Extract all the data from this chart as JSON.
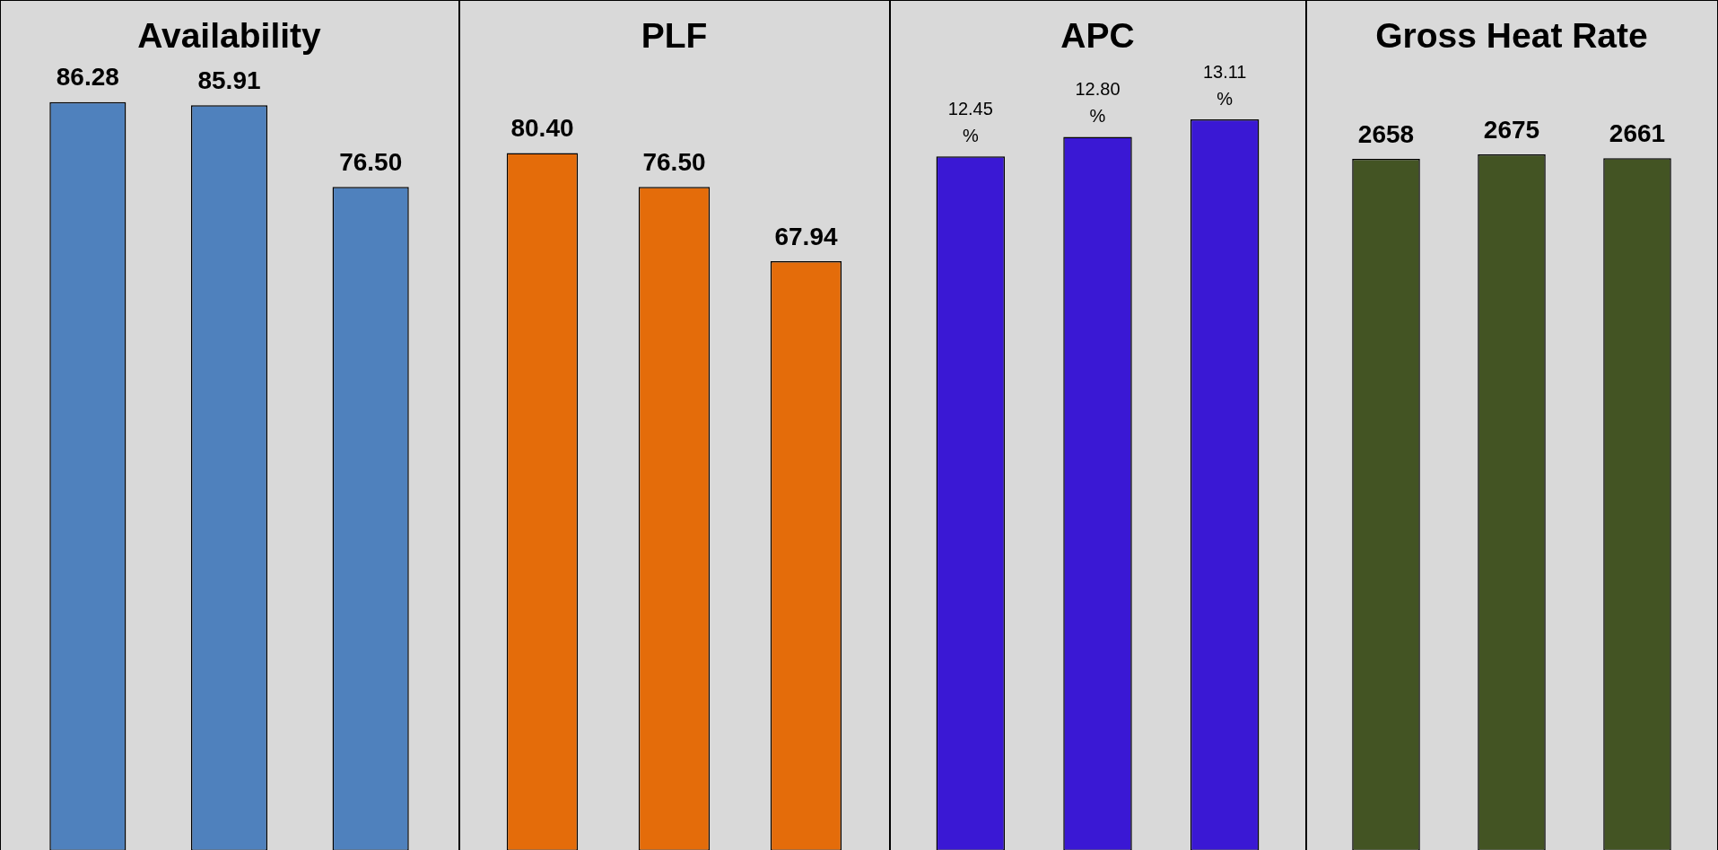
{
  "chart_data": [
    {
      "type": "bar",
      "title": "Availability",
      "categories": [
        null,
        null,
        null
      ],
      "values": [
        86.28,
        85.91,
        76.5
      ],
      "color": "#4f81bd",
      "tick_labels": false,
      "grid": false,
      "value_labels": [
        "86.28",
        "85.91",
        "76.50"
      ]
    },
    {
      "type": "bar",
      "title": "PLF",
      "categories": [
        null,
        null,
        null
      ],
      "values": [
        80.4,
        76.5,
        67.94
      ],
      "color": "#e46c0a",
      "tick_labels": false,
      "grid": false,
      "value_labels": [
        "80.40",
        "76.50",
        "67.94"
      ]
    },
    {
      "type": "bar",
      "title": "APC",
      "categories": [
        null,
        null,
        null
      ],
      "values": [
        12.45,
        12.8,
        13.11
      ],
      "color": "#3a18d4",
      "tick_labels": false,
      "grid": false,
      "value_labels": [
        "12.45 %",
        "12.80 %",
        "13.11 %"
      ]
    },
    {
      "type": "bar",
      "title": "Gross Heat Rate",
      "categories": [
        null,
        null,
        null
      ],
      "values": [
        2658,
        2675,
        2661
      ],
      "color": "#435423",
      "tick_labels": false,
      "grid": false,
      "data_labels": true
    }
  ]
}
